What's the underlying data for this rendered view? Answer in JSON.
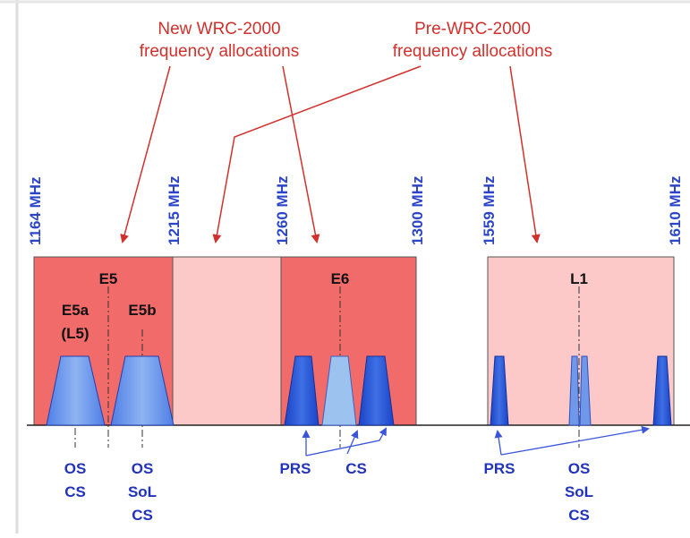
{
  "annotations": {
    "new_wrc_line1": "New WRC-2000",
    "new_wrc_line2": "frequency allocations",
    "pre_wrc_line1": "Pre-WRC-2000",
    "pre_wrc_line2": "frequency allocations"
  },
  "frequencies": {
    "f1164": "1164 MHz",
    "f1215": "1215 MHz",
    "f1260": "1260 MHz",
    "f1300": "1300 MHz",
    "f1559": "1559 MHz",
    "f1610": "1610 MHz"
  },
  "bands": {
    "e5": "E5",
    "e5a": "E5a",
    "l5": "(L5)",
    "e5b": "E5b",
    "e6": "E6",
    "l1": "L1"
  },
  "services": {
    "e5a_os": "OS",
    "e5a_cs": "CS",
    "e5b_os": "OS",
    "e5b_sol": "SoL",
    "e5b_cs": "CS",
    "e6_prs": "PRS",
    "e6_cs": "CS",
    "l1_prs": "PRS",
    "l1_os": "OS",
    "l1_sol": "SoL",
    "l1_cs": "CS"
  },
  "colors": {
    "new_allocation": "#f26b6b",
    "pre_allocation": "#fcc8c8",
    "signal_dark": "#1f4fd6",
    "signal_mid": "#4f7fe6",
    "signal_light": "#9cc2f0",
    "arrow_red": "#d0312d",
    "arrow_blue": "#3a55d8"
  }
}
